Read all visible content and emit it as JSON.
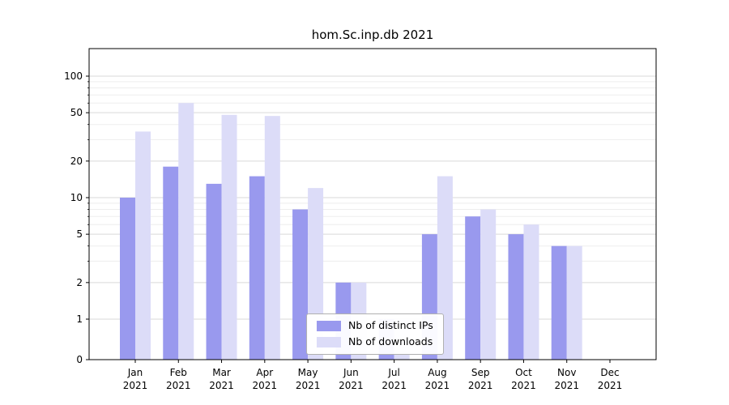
{
  "chart_data": {
    "type": "bar",
    "title": "hom.Sc.inp.db 2021",
    "year": "2021",
    "categories": [
      "Jan",
      "Feb",
      "Mar",
      "Apr",
      "May",
      "Jun",
      "Jul",
      "Aug",
      "Sep",
      "Oct",
      "Nov",
      "Dec"
    ],
    "y_axis": {
      "scale": "symlog",
      "ticks": [
        0,
        1,
        2,
        5,
        10,
        20,
        50,
        100
      ],
      "minor_ticks": [
        3,
        4,
        6,
        7,
        8,
        9,
        30,
        40,
        60,
        70,
        80,
        90
      ],
      "range": [
        0,
        150
      ]
    },
    "series": [
      {
        "name": "Nb of distinct IPs",
        "color": "#9999ee",
        "values": [
          10,
          18,
          13,
          15,
          8,
          2,
          1,
          5,
          7,
          5,
          4,
          0
        ]
      },
      {
        "name": "Nb of downloads",
        "color": "#dcdcf8",
        "values": [
          35,
          60,
          48,
          47,
          12,
          2,
          1,
          15,
          8,
          6,
          4,
          0
        ]
      }
    ],
    "legend_position": "lower center",
    "grid": true
  }
}
